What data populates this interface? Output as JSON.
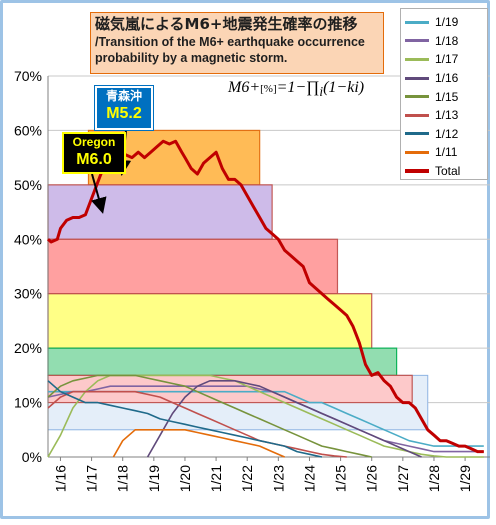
{
  "title": {
    "jp": "磁気嵐によるM6+地震発生確率の推移",
    "en": "/Transition of the M6+ earthquake occurrence probability by a magnetic storm."
  },
  "formula": {
    "lhs": "M6+",
    "unit": "[%]",
    "rhs": "=1−∏",
    "sub": "i",
    "tail": "(1−ki)"
  },
  "annotations": [
    {
      "line1": "青森沖",
      "line2": "M5.2"
    },
    {
      "line1": "Oregon",
      "line2": "M6.0"
    }
  ],
  "colors": {
    "1/19a": "#4bacc6",
    "1/18": "#8064a2",
    "1/17": "#9bbb59",
    "1/16": "#604a7b",
    "1/15": "#77933c",
    "1/13": "#c0504d",
    "1/12": "#1f6a8a",
    "1/11": "#e46c0a",
    "Total": "#c00000"
  },
  "chart_data": {
    "type": "line",
    "y_unit": "%",
    "ylim": [
      0,
      70
    ],
    "yticks": [
      "0%",
      "10%",
      "20%",
      "30%",
      "40%",
      "50%",
      "60%",
      "70%"
    ],
    "xticks": [
      "1/16",
      "1/17",
      "1/18",
      "1/19",
      "1/20",
      "1/21",
      "1/22",
      "1/23",
      "1/24",
      "1/25",
      "1/26",
      "1/27",
      "1/28",
      "1/29"
    ],
    "xlim": [
      15.6,
      29.8
    ],
    "legend": [
      "1/19",
      "1/18",
      "1/17",
      "1/16",
      "1/15",
      "1/13",
      "1/12",
      "1/11",
      "Total"
    ],
    "bands": [
      {
        "color": "#c0504d",
        "fill": "#ff9999",
        "x0": 15.6,
        "x1": 27.3,
        "y": 15
      },
      {
        "color": "#00b050",
        "fill": "#5dd18c",
        "x0": 15.6,
        "x1": 26.8,
        "y": 20
      },
      {
        "color": "#c0504d",
        "fill": "#ffff66",
        "x0": 15.6,
        "x1": 26.0,
        "y": 30
      },
      {
        "color": "#c0504d",
        "fill": "#ff8f8f",
        "x0": 15.6,
        "x1": 24.9,
        "y": 40
      },
      {
        "color": "#c0504d",
        "fill": "#c9b3e6",
        "x0": 15.6,
        "x1": 22.8,
        "y": 50
      },
      {
        "color": "#e46c0a",
        "fill": "#ffb347",
        "x0": 16.9,
        "x1": 22.4,
        "y": 60
      }
    ],
    "lightband": {
      "x0": 15.6,
      "x1": 27.8,
      "y0": 5,
      "y1": 15
    },
    "series": [
      {
        "name": "Total",
        "color": "#c00000",
        "width": 3,
        "x": [
          15.6,
          15.7,
          15.9,
          16.0,
          16.2,
          16.4,
          16.6,
          16.8,
          16.9,
          17.1,
          17.3,
          17.5,
          17.7,
          17.9,
          18.1,
          18.3,
          18.5,
          18.7,
          18.9,
          19.1,
          19.3,
          19.5,
          19.7,
          19.9,
          20.0,
          20.2,
          20.4,
          20.6,
          20.8,
          21.0,
          21.2,
          21.4,
          21.6,
          21.8,
          22.0,
          22.2,
          22.4,
          22.6,
          22.8,
          23.0,
          23.2,
          23.4,
          23.6,
          23.8,
          24.0,
          24.2,
          24.4,
          24.6,
          24.8,
          25.0,
          25.2,
          25.4,
          25.6,
          25.8,
          26.0,
          26.2,
          26.4,
          26.6,
          26.8,
          27.0,
          27.2,
          27.4,
          27.6,
          27.8,
          28.0,
          28.2,
          28.4,
          28.6,
          28.8,
          29.0,
          29.2,
          29.4,
          29.6
        ],
        "y": [
          40,
          39.5,
          40,
          42,
          43.5,
          44,
          44,
          44.5,
          46,
          49,
          52,
          54,
          55,
          56,
          55.5,
          55,
          56,
          55,
          56,
          57,
          58,
          57.5,
          58,
          56,
          55,
          53,
          52,
          54,
          55,
          56,
          53,
          51,
          51,
          50,
          48,
          46,
          44,
          42,
          41,
          40,
          38,
          37,
          36,
          35,
          32,
          31,
          30,
          29,
          28,
          27,
          26,
          24,
          21,
          17,
          15,
          15.5,
          14,
          13,
          11,
          10,
          10,
          9,
          7,
          5,
          4,
          3,
          3,
          2.5,
          2,
          2,
          1.5,
          1,
          1
        ]
      },
      {
        "name": "1/19a",
        "color": "#4bacc6",
        "width": 1.6,
        "x": [
          15.6,
          16.0,
          16.4,
          16.8,
          17.2,
          17.6,
          18.0,
          18.4,
          18.8,
          19.2,
          19.6,
          20.0,
          20.4,
          20.8,
          21.2,
          21.6,
          22.0,
          22.4,
          22.8,
          23.2,
          23.6,
          24.0,
          24.4,
          24.8,
          25.2,
          25.6,
          26.0,
          26.4,
          26.8,
          27.2,
          27.6,
          28.0,
          28.4,
          28.8,
          29.2,
          29.6
        ],
        "y": [
          12,
          12,
          12,
          12,
          12,
          12,
          12,
          12,
          12,
          12,
          12,
          12,
          12,
          12,
          12,
          12,
          12,
          12,
          12,
          12,
          11,
          10,
          10,
          9,
          8,
          7,
          6,
          5,
          4,
          3,
          2.5,
          2,
          2,
          2,
          2,
          2
        ]
      },
      {
        "name": "1/18",
        "color": "#8064a2",
        "width": 1.6,
        "x": [
          15.6,
          16.0,
          16.4,
          16.8,
          17.2,
          17.6,
          18.0,
          18.4,
          18.8,
          19.2,
          19.6,
          20.0,
          20.4,
          20.8,
          21.2,
          21.6,
          22.0,
          22.4,
          22.8,
          23.2,
          23.6,
          24.0,
          24.4,
          24.8,
          25.2,
          25.6,
          26.0,
          26.4,
          26.8,
          27.2,
          27.6,
          28.0,
          28.4,
          28.8,
          29.2,
          29.6
        ],
        "y": [
          11,
          11.5,
          12,
          12,
          12.5,
          13,
          13,
          13,
          13,
          13,
          13,
          13,
          13,
          13,
          13,
          13,
          13,
          12.5,
          12,
          11,
          10,
          9,
          8,
          7,
          6,
          5,
          4,
          3,
          2.5,
          2,
          1.5,
          1,
          1,
          1,
          1,
          1
        ]
      },
      {
        "name": "1/17",
        "color": "#9bbb59",
        "width": 1.6,
        "x": [
          15.6,
          16.0,
          16.4,
          16.8,
          17.2,
          17.6,
          18.0,
          18.4,
          18.8,
          19.2,
          19.6,
          20.0,
          20.4,
          20.8,
          21.2,
          21.6,
          22.0,
          22.4,
          22.8,
          23.2,
          23.6,
          24.0,
          24.4,
          24.8,
          25.2,
          25.6,
          26.0,
          26.4,
          26.8,
          27.2,
          27.6,
          28.0,
          28.4,
          28.8,
          29.2,
          29.6
        ],
        "y": [
          0,
          4,
          9,
          12,
          14,
          15,
          15,
          15,
          15,
          15,
          15,
          15,
          15,
          15,
          14.5,
          14,
          13,
          12,
          11,
          10,
          9,
          8,
          7,
          6,
          5,
          4,
          3,
          2,
          1.5,
          1,
          0.5,
          0.2,
          0,
          0,
          0,
          0
        ]
      },
      {
        "name": "1/16",
        "color": "#604a7b",
        "width": 1.6,
        "x": [
          18.8,
          19.2,
          19.6,
          20.0,
          20.4,
          20.8,
          21.2,
          21.6,
          22.0,
          22.4,
          22.8,
          23.2,
          23.6,
          24.0,
          24.4,
          24.8,
          25.2,
          25.6,
          26.0,
          26.4,
          26.8,
          27.2,
          27.6
        ],
        "y": [
          0,
          4,
          8,
          11,
          13,
          14,
          14,
          14,
          13.5,
          13,
          12,
          11,
          10,
          9,
          8,
          7,
          6,
          5,
          4,
          3,
          2,
          1,
          0
        ]
      },
      {
        "name": "1/15",
        "color": "#77933c",
        "width": 1.6,
        "x": [
          15.6,
          16.0,
          16.4,
          16.8,
          17.2,
          17.6,
          18.0,
          18.4,
          18.8,
          19.2,
          19.6,
          20.0,
          20.4,
          20.8,
          21.2,
          21.6,
          22.0,
          22.4,
          22.8,
          23.2,
          23.6,
          24.0,
          24.4,
          24.8,
          25.2,
          25.6,
          26.0
        ],
        "y": [
          11,
          13,
          14,
          14.5,
          15,
          15,
          15,
          15,
          14.5,
          14,
          13.5,
          13,
          12,
          11,
          10,
          9,
          8,
          7,
          6,
          5,
          4,
          3,
          2,
          1.5,
          1,
          0.5,
          0
        ]
      },
      {
        "name": "1/13",
        "color": "#c0504d",
        "width": 1.6,
        "x": [
          15.6,
          16.0,
          16.4,
          16.8,
          17.2,
          17.6,
          18.0,
          18.4,
          18.8,
          19.2,
          19.6,
          20.0,
          20.4,
          20.8,
          21.2,
          21.6,
          22.0,
          22.4,
          22.8,
          23.2,
          23.6,
          24.0,
          24.4,
          24.8,
          25.2
        ],
        "y": [
          9,
          11,
          12,
          12,
          12,
          12,
          12,
          12,
          11.5,
          11,
          10,
          9,
          8,
          7,
          6,
          5,
          4,
          3,
          2.5,
          2,
          1.5,
          1,
          0.5,
          0.2,
          0
        ]
      },
      {
        "name": "1/12",
        "color": "#1f6a8a",
        "width": 1.6,
        "x": [
          15.6,
          16.0,
          16.4,
          16.8,
          17.2,
          17.6,
          18.0,
          18.4,
          18.8,
          19.2,
          19.6,
          20.0,
          20.4,
          20.8,
          21.2,
          21.6,
          22.0,
          22.4,
          22.8,
          23.2,
          23.6,
          24.0,
          24.4
        ],
        "y": [
          14,
          12,
          11,
          10,
          10,
          9.5,
          9,
          8.5,
          8,
          7,
          6.5,
          6,
          5.5,
          5,
          4.5,
          4,
          3.5,
          3,
          2.5,
          2,
          1,
          0.5,
          0
        ]
      },
      {
        "name": "1/11",
        "color": "#e46c0a",
        "width": 1.6,
        "x": [
          17.7,
          18.0,
          18.4,
          18.8,
          19.2,
          19.6,
          20.0,
          20.4,
          20.8,
          21.2,
          21.6,
          22.0,
          22.4,
          22.8,
          23.2
        ],
        "y": [
          0,
          3,
          5,
          5,
          5,
          5,
          5,
          4.5,
          4,
          3.5,
          3,
          2.5,
          2,
          1,
          0
        ]
      }
    ],
    "arrows": [
      {
        "from": [
          17.15,
          51.5
        ],
        "to": [
          17.25,
          52.5
        ]
      },
      {
        "from": [
          16.7,
          51
        ],
        "to": [
          16.9,
          44
        ]
      }
    ]
  }
}
